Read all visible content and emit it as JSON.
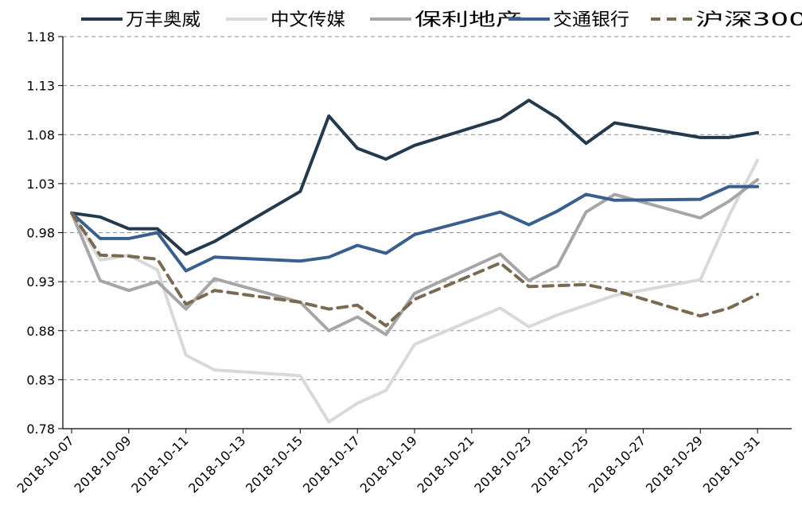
{
  "chart_data": {
    "type": "line",
    "title": "",
    "xlabel": "",
    "ylabel": "",
    "ylim": [
      0.78,
      1.18
    ],
    "y_ticks": [
      "0.78",
      "0.83",
      "0.88",
      "0.93",
      "0.98",
      "1.03",
      "1.08",
      "1.13",
      "1.18"
    ],
    "x_ticks": [
      "2018-10-07",
      "2018-10-09",
      "2018-10-11",
      "2018-10-13",
      "2018-10-15",
      "2018-10-17",
      "2018-10-19",
      "2018-10-21",
      "2018-10-23",
      "2018-10-25",
      "2018-10-27",
      "2018-10-29",
      "2018-10-31"
    ],
    "grid": "horizontal dashed",
    "legend_position": "top",
    "x": [
      "2018-10-07",
      "2018-10-08",
      "2018-10-09",
      "2018-10-10",
      "2018-10-11",
      "2018-10-12",
      "2018-10-15",
      "2018-10-16",
      "2018-10-17",
      "2018-10-18",
      "2018-10-19",
      "2018-10-22",
      "2018-10-23",
      "2018-10-24",
      "2018-10-25",
      "2018-10-26",
      "2018-10-29",
      "2018-10-30",
      "2018-10-31"
    ],
    "series": [
      {
        "name": "万丰奥威",
        "color": "#243a4c",
        "dash": false,
        "values": [
          1.0,
          0.996,
          0.984,
          0.984,
          0.958,
          0.971,
          1.022,
          1.099,
          1.066,
          1.055,
          1.069,
          1.096,
          1.115,
          1.097,
          1.071,
          1.092,
          1.077,
          1.077,
          1.082
        ]
      },
      {
        "name": "中文传媒",
        "color": "#d9d9d9",
        "dash": false,
        "values": [
          1.0,
          0.952,
          0.957,
          0.942,
          0.855,
          0.84,
          0.834,
          0.787,
          0.806,
          0.819,
          0.866,
          0.903,
          0.884,
          0.896,
          0.906,
          0.916,
          0.932,
          0.997,
          1.054
        ]
      },
      {
        "name": "保利地产",
        "color": "#a6a6a6",
        "dash": false,
        "values": [
          1.0,
          0.931,
          0.921,
          0.93,
          0.902,
          0.933,
          0.909,
          0.88,
          0.894,
          0.876,
          0.918,
          0.958,
          0.931,
          0.946,
          1.001,
          1.019,
          0.995,
          1.012,
          1.034
        ]
      },
      {
        "name": "交通银行",
        "color": "#385f8e",
        "dash": false,
        "values": [
          1.0,
          0.974,
          0.974,
          0.98,
          0.941,
          0.955,
          0.951,
          0.955,
          0.967,
          0.959,
          0.978,
          1.001,
          0.988,
          1.002,
          1.019,
          1.013,
          1.014,
          1.027,
          1.027
        ]
      },
      {
        "name": "沪深300",
        "color": "#7a6a52",
        "dash": true,
        "values": [
          1.0,
          0.957,
          0.956,
          0.953,
          0.907,
          0.921,
          0.909,
          0.902,
          0.906,
          0.885,
          0.912,
          0.949,
          0.925,
          0.926,
          0.927,
          0.921,
          0.895,
          0.903,
          0.917
        ]
      }
    ]
  }
}
